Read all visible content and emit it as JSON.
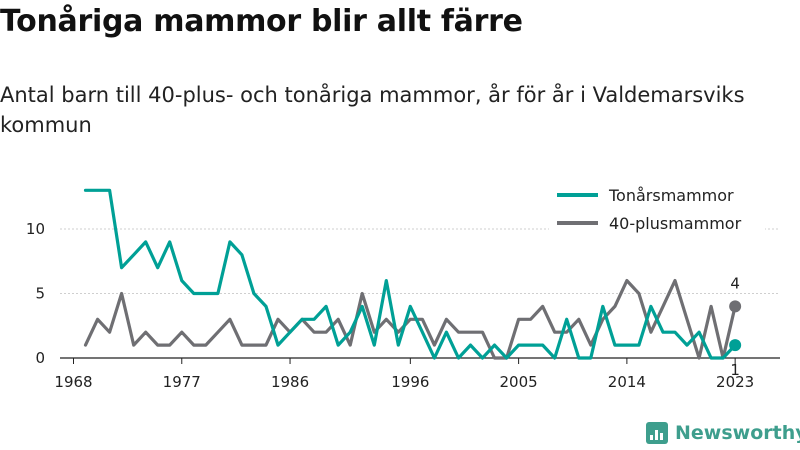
{
  "title": "Tonåriga mammor blir allt färre",
  "subtitle": "Antal barn till 40-plus- och tonåriga mammor, år för år i Valdemarsviks kommun",
  "brand": {
    "name": "Newsworthy",
    "color": "#3e9e8d"
  },
  "chart_data": {
    "type": "line",
    "title": "Tonåriga mammor blir allt färre",
    "subtitle": "Antal barn till 40-plus- och tonåriga mammor, år för år i Valdemarsviks kommun",
    "x": [
      1969,
      1970,
      1971,
      1972,
      1973,
      1974,
      1975,
      1976,
      1977,
      1978,
      1979,
      1980,
      1981,
      1982,
      1983,
      1984,
      1985,
      1986,
      1987,
      1988,
      1989,
      1990,
      1991,
      1992,
      1993,
      1994,
      1995,
      1996,
      1997,
      1998,
      1999,
      2000,
      2001,
      2002,
      2003,
      2004,
      2005,
      2006,
      2007,
      2008,
      2009,
      2010,
      2011,
      2012,
      2013,
      2014,
      2015,
      2016,
      2017,
      2018,
      2019,
      2020,
      2021,
      2022,
      2023
    ],
    "x_ticks": [
      "1968",
      "1977",
      "1986",
      "1996",
      "2005",
      "2014",
      "2023"
    ],
    "y_ticks": [
      "0",
      "5",
      "10"
    ],
    "ylim": [
      0,
      13.5
    ],
    "grid": true,
    "legend_position": "top-right",
    "series": [
      {
        "name": "Tonårsmammor",
        "color": "#00a096",
        "values": [
          13,
          13,
          13,
          7,
          8,
          9,
          7,
          9,
          6,
          5,
          5,
          5,
          9,
          8,
          5,
          4,
          1,
          2,
          3,
          3,
          4,
          1,
          2,
          4,
          1,
          6,
          1,
          4,
          2,
          0,
          2,
          0,
          1,
          0,
          1,
          0,
          1,
          1,
          1,
          0,
          3,
          0,
          0,
          4,
          1,
          1,
          1,
          4,
          2,
          2,
          1,
          2,
          0,
          0,
          1
        ],
        "end_label": "1"
      },
      {
        "name": "40-plusmammor",
        "color": "#6f6f73",
        "values": [
          1,
          3,
          2,
          5,
          1,
          2,
          1,
          1,
          2,
          1,
          1,
          2,
          3,
          1,
          1,
          1,
          3,
          2,
          3,
          2,
          2,
          3,
          1,
          5,
          2,
          3,
          2,
          3,
          3,
          1,
          3,
          2,
          2,
          2,
          0,
          0,
          3,
          3,
          4,
          2,
          2,
          3,
          1,
          3,
          4,
          6,
          5,
          2,
          4,
          6,
          3,
          0,
          4,
          0,
          4
        ],
        "end_label": "4"
      }
    ]
  }
}
